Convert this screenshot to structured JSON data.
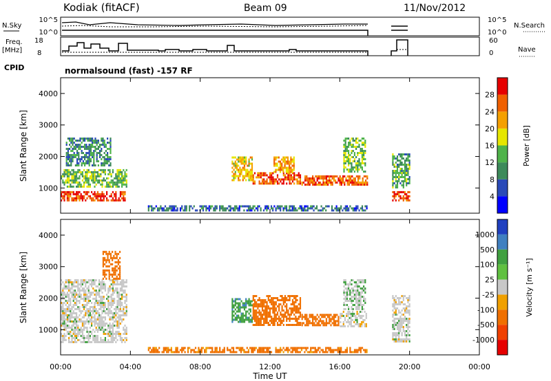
{
  "header": {
    "station": "Kodiak (fitACF)",
    "beam": "Beam 09",
    "date": "11/Nov/2012"
  },
  "top_panels": {
    "nsky_label": "N.Sky",
    "nsky_ticks": [
      "10^5",
      "10^0"
    ],
    "nsky_right_ticks": [
      "10^5",
      "10^0"
    ],
    "nsearch_label": "N.Search",
    "freq_label": "Freq.",
    "freq_unit": "[MHz]",
    "freq_ticks": [
      "18",
      "8"
    ],
    "nave_ticks": [
      "60",
      "0"
    ],
    "nave_label": "Nave",
    "cpid_label": "CPID",
    "cpid_text": "normalsound (fast) -157 RF"
  },
  "colors": {
    "power": [
      "#0000ff",
      "#2a4ab8",
      "#3d8a5a",
      "#4fb34a",
      "#e6e600",
      "#f5a000",
      "#f06000",
      "#e60000"
    ],
    "velocity_pos": [
      "#2040c0",
      "#4080c0",
      "#40a040",
      "#60c040"
    ],
    "velocity_neutral": "#c8c8c8",
    "velocity_neg": [
      "#f0a000",
      "#f07000",
      "#f04000",
      "#e60000"
    ]
  },
  "chart_data": [
    {
      "type": "heatmap",
      "title": "",
      "xlabel": "Time UT",
      "ylabel": "Slant Range [km]",
      "x_ticks": [
        "00:00",
        "04:00",
        "08:00",
        "12:00",
        "16:00",
        "20:00",
        "00:00"
      ],
      "y_ticks": [
        "1000",
        "2000",
        "3000",
        "4000"
      ],
      "ylim": [
        200,
        4500
      ],
      "colorbar": {
        "label": "Power [dB]",
        "ticks": [
          "4",
          "8",
          "12",
          "16",
          "20",
          "24",
          "28"
        ],
        "range": [
          0,
          32
        ]
      },
      "regions": [
        {
          "t": [
            0.0,
            3.7
          ],
          "r": [
            600,
            900
          ],
          "value": 28
        },
        {
          "t": [
            0.0,
            3.8
          ],
          "r": [
            1000,
            1600
          ],
          "value": 14
        },
        {
          "t": [
            0.3,
            2.9
          ],
          "r": [
            1700,
            2600
          ],
          "value": 10
        },
        {
          "t": [
            9.8,
            11.0
          ],
          "r": [
            1200,
            2000
          ],
          "value": 20
        },
        {
          "t": [
            11.0,
            13.8
          ],
          "r": [
            1100,
            1500
          ],
          "value": 27
        },
        {
          "t": [
            12.2,
            13.4
          ],
          "r": [
            1500,
            2000
          ],
          "value": 22
        },
        {
          "t": [
            13.8,
            17.6
          ],
          "r": [
            1100,
            1400
          ],
          "value": 26
        },
        {
          "t": [
            16.2,
            17.5
          ],
          "r": [
            1500,
            2600
          ],
          "value": 15
        },
        {
          "t": [
            19.0,
            20.0
          ],
          "r": [
            600,
            900
          ],
          "value": 28
        },
        {
          "t": [
            19.0,
            20.0
          ],
          "r": [
            1000,
            2100
          ],
          "value": 12
        },
        {
          "t": [
            5.0,
            17.6
          ],
          "r": [
            250,
            450
          ],
          "value": 8
        }
      ]
    },
    {
      "type": "heatmap",
      "title": "",
      "xlabel": "Time UT",
      "ylabel": "Slant Range [km]",
      "x_ticks": [
        "00:00",
        "04:00",
        "08:00",
        "12:00",
        "16:00",
        "20:00",
        "00:00"
      ],
      "y_ticks": [
        "1000",
        "2000",
        "3000",
        "4000"
      ],
      "ylim": [
        200,
        4500
      ],
      "colorbar": {
        "label": "Velocity [m s⁻¹]",
        "ticks": [
          "1000",
          "500",
          "100",
          "25",
          "-25",
          "-100",
          "-500",
          "-1000"
        ],
        "range": [
          -1200,
          1200
        ]
      },
      "regions": [
        {
          "t": [
            0.0,
            3.8
          ],
          "r": [
            600,
            2600
          ],
          "value": 0
        },
        {
          "t": [
            2.4,
            3.4
          ],
          "r": [
            2600,
            3500
          ],
          "value": -150
        },
        {
          "t": [
            9.8,
            11.0
          ],
          "r": [
            1200,
            2000
          ],
          "value": 80
        },
        {
          "t": [
            11.0,
            13.8
          ],
          "r": [
            1100,
            2100
          ],
          "value": -200
        },
        {
          "t": [
            13.8,
            16.0
          ],
          "r": [
            1100,
            1500
          ],
          "value": -180
        },
        {
          "t": [
            16.0,
            17.6
          ],
          "r": [
            1100,
            1600
          ],
          "value": 0
        },
        {
          "t": [
            16.2,
            17.5
          ],
          "r": [
            1600,
            2600
          ],
          "value": 10
        },
        {
          "t": [
            19.0,
            20.0
          ],
          "r": [
            600,
            2100
          ],
          "value": 0
        },
        {
          "t": [
            5.0,
            17.6
          ],
          "r": [
            250,
            450
          ],
          "value": -120
        }
      ]
    }
  ]
}
